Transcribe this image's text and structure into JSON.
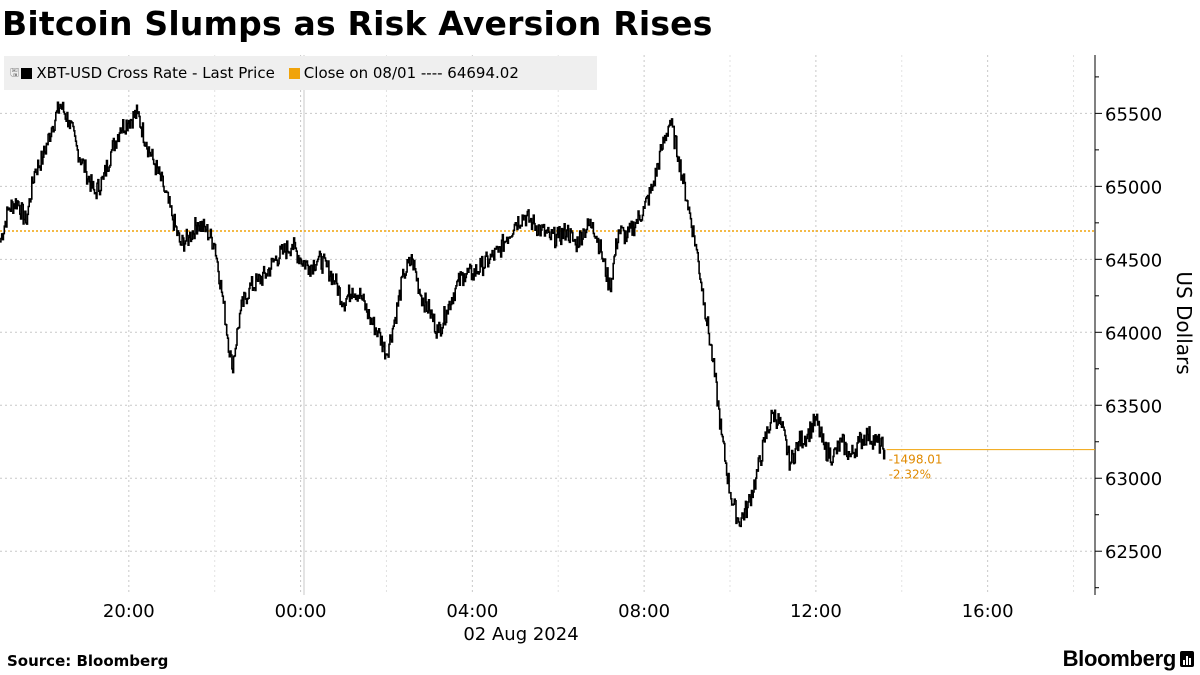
{
  "title": "Bitcoin Slumps as Risk Aversion Rises",
  "legend": {
    "series_label": "XBT-USD Cross Rate - Last Price",
    "reference_label": "Close on 08/01 ---- 64694.02"
  },
  "source": "Source: Bloomberg",
  "brand": "Bloomberg",
  "colors": {
    "line": "#000000",
    "reference": "#f0a30a",
    "grid": "#c8c8c8",
    "legend_bg": "#efefef"
  },
  "chart_data": {
    "type": "line",
    "title": "Bitcoin Slumps as Risk Aversion Rises",
    "ylabel": "US Dollars",
    "date_label": "02 Aug 2024",
    "x_ticks": [
      "20:00",
      "00:00",
      "04:00",
      "08:00",
      "12:00",
      "16:00"
    ],
    "x_tick_hours": [
      20,
      24,
      28,
      32,
      36,
      40
    ],
    "xlim_hours": [
      17,
      42.5
    ],
    "y_ticks": [
      "62500",
      "63000",
      "63500",
      "64000",
      "64500",
      "65000",
      "65500"
    ],
    "ylim": [
      62200,
      65900
    ],
    "reference": {
      "label": "Close on 08/01",
      "value": 64694.02
    },
    "last_value": 63196,
    "change_annotation": [
      "-1498.01",
      "-2.32%"
    ],
    "series": [
      {
        "name": "XBT-USD Cross Rate - Last Price",
        "x_hours": [
          17.0,
          17.2,
          17.4,
          17.6,
          17.8,
          18.0,
          18.2,
          18.4,
          18.6,
          18.8,
          19.0,
          19.2,
          19.4,
          19.6,
          19.8,
          20.0,
          20.2,
          20.4,
          20.6,
          20.8,
          21.0,
          21.2,
          21.4,
          21.6,
          21.8,
          22.0,
          22.2,
          22.4,
          22.6,
          22.8,
          23.0,
          23.2,
          23.4,
          23.6,
          23.8,
          24.0,
          24.2,
          24.4,
          24.6,
          24.8,
          25.0,
          25.2,
          25.4,
          25.6,
          25.8,
          26.0,
          26.2,
          26.4,
          26.6,
          26.8,
          27.0,
          27.2,
          27.4,
          27.6,
          27.8,
          28.0,
          28.2,
          28.4,
          28.6,
          28.8,
          29.0,
          29.2,
          29.4,
          29.6,
          29.8,
          30.0,
          30.2,
          30.4,
          30.6,
          30.8,
          31.0,
          31.2,
          31.4,
          31.6,
          31.8,
          32.0,
          32.2,
          32.4,
          32.6,
          32.8,
          33.0,
          33.2,
          33.4,
          33.6,
          33.8,
          34.0,
          34.2,
          34.4,
          34.6,
          34.8,
          35.0,
          35.2,
          35.4,
          35.6,
          35.8,
          36.0,
          36.2,
          36.4,
          36.6,
          36.8,
          37.0,
          37.2,
          37.4,
          37.6
        ],
        "values": [
          64620,
          64850,
          64900,
          64750,
          65100,
          65200,
          65400,
          65560,
          65450,
          65250,
          65100,
          64950,
          65050,
          65250,
          65400,
          65450,
          65500,
          65300,
          65150,
          65000,
          64800,
          64600,
          64650,
          64750,
          64700,
          64600,
          64200,
          63750,
          64150,
          64300,
          64350,
          64400,
          64500,
          64550,
          64600,
          64500,
          64450,
          64500,
          64450,
          64350,
          64200,
          64300,
          64250,
          64100,
          64000,
          63850,
          64100,
          64400,
          64500,
          64250,
          64150,
          64000,
          64150,
          64300,
          64400,
          64400,
          64450,
          64500,
          64550,
          64650,
          64750,
          64800,
          64750,
          64700,
          64650,
          64650,
          64700,
          64600,
          64700,
          64750,
          64550,
          64300,
          64700,
          64650,
          64750,
          64850,
          65000,
          65250,
          65450,
          65200,
          64900,
          64600,
          64200,
          63800,
          63300,
          62900,
          62700,
          62800,
          63000,
          63250,
          63450,
          63350,
          63100,
          63250,
          63300,
          63400,
          63200,
          63150,
          63250,
          63150,
          63250,
          63300,
          63250,
          63196
        ]
      }
    ]
  }
}
